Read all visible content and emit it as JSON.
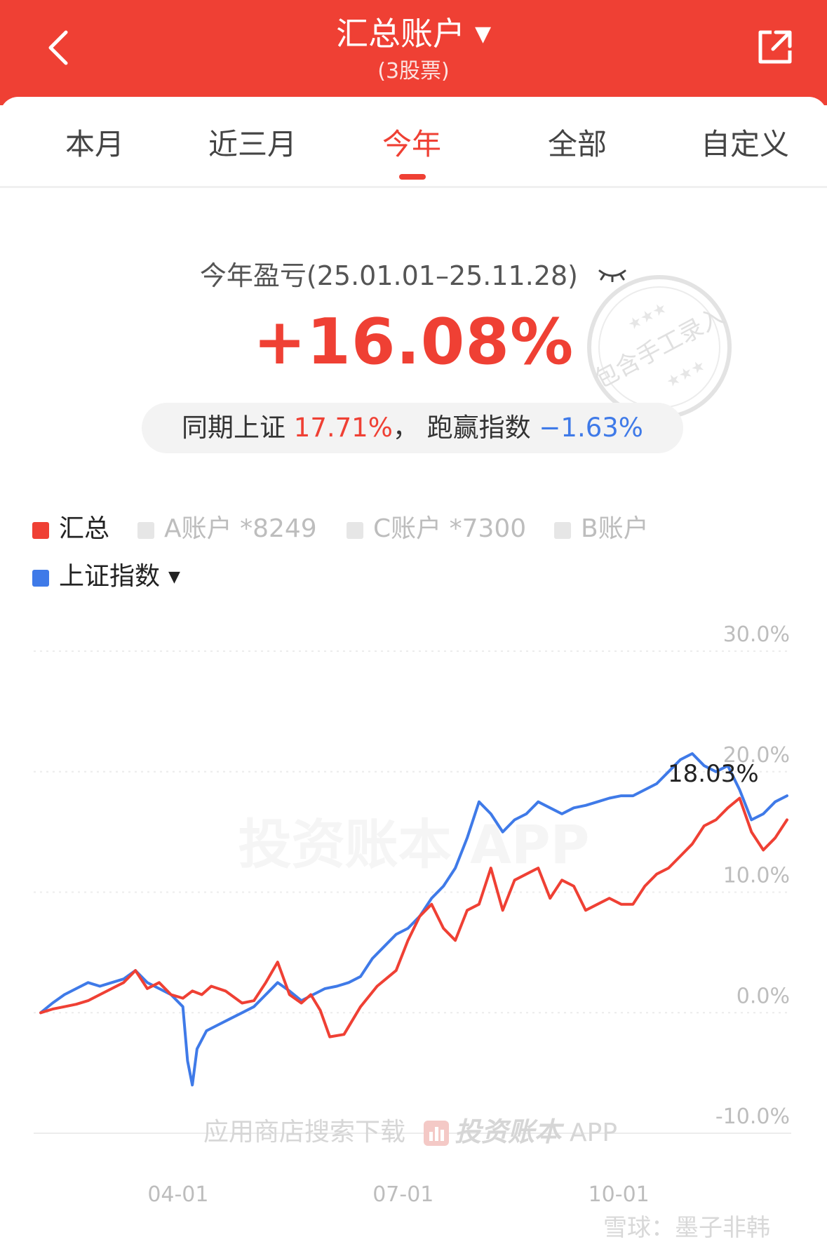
{
  "header": {
    "title": "汇总账户",
    "subtitle": "(3股票)",
    "back_icon": "chevron-left-icon",
    "share_icon": "share-icon",
    "bg_color": "#ef4034"
  },
  "tabs": [
    {
      "label": "本月",
      "active": false
    },
    {
      "label": "近三月",
      "active": false
    },
    {
      "label": "今年",
      "active": true
    },
    {
      "label": "全部",
      "active": false
    },
    {
      "label": "自定义",
      "active": false
    }
  ],
  "summary": {
    "label": "今年盈亏(25.01.01–25.11.28)",
    "return_pct": "+16.08%",
    "compare_prefix": "同期上证",
    "index_pct": "17.71%",
    "separator": "，",
    "beat_label": "跑赢指数",
    "beat_pct": "−1.63%"
  },
  "stamp_text": "包含手工录入",
  "legend": [
    {
      "label": "汇总",
      "color": "#ef4034",
      "active": true
    },
    {
      "label": "A账户  *8249",
      "color": "#e6e6e6",
      "active": false
    },
    {
      "label": "C账户  *7300",
      "color": "#e6e6e6",
      "active": false
    },
    {
      "label": "B账户",
      "color": "#e6e6e6",
      "active": false
    },
    {
      "label": "上证指数",
      "color": "#3f7ae8",
      "active": true
    }
  ],
  "watermarks": {
    "center": "投资账本 APP",
    "download": "应用商店搜索下载",
    "app_name": "投资账本",
    "app_suffix": "APP",
    "footer": "雪球：墨子非韩"
  },
  "chart_data": {
    "type": "line",
    "y_ticks": [
      "30.0%",
      "20.0%",
      "10.0%",
      "0.0%",
      "-10.0%"
    ],
    "ylim": [
      -10,
      30
    ],
    "x_ticks": [
      "04-01",
      "07-01",
      "10-01"
    ],
    "x_tick_pos": [
      58,
      153,
      244
    ],
    "grid": true,
    "marker_label": "18.03%",
    "series": [
      {
        "name": "汇总",
        "color": "#ef4034",
        "x": [
          0,
          5,
          10,
          15,
          20,
          25,
          30,
          35,
          40,
          45,
          50,
          55,
          60,
          64,
          68,
          72,
          78,
          85,
          90,
          95,
          100,
          105,
          110,
          114,
          118,
          122,
          128,
          135,
          142,
          150,
          155,
          160,
          165,
          170,
          175,
          180,
          185,
          190,
          195,
          200,
          205,
          210,
          215,
          220,
          225,
          230,
          235,
          240,
          245,
          250,
          255,
          260,
          265,
          270,
          275,
          280,
          285,
          290,
          295,
          300,
          305,
          310,
          315
        ],
        "values": [
          0,
          0.3,
          0.5,
          0.7,
          1.0,
          1.5,
          2.0,
          2.5,
          3.5,
          2.0,
          2.5,
          1.5,
          1.2,
          1.8,
          1.5,
          2.2,
          1.8,
          0.8,
          1.0,
          2.5,
          4.2,
          1.5,
          0.8,
          1.5,
          0.2,
          -2.0,
          -1.8,
          0.5,
          2.2,
          3.5,
          6.0,
          8.0,
          9.0,
          7.0,
          6.0,
          8.5,
          9.0,
          12.0,
          8.5,
          11.0,
          11.5,
          12.0,
          9.5,
          11.0,
          10.5,
          8.5,
          9.0,
          9.5,
          9.0,
          9.0,
          10.5,
          11.5,
          12.0,
          13.0,
          14.0,
          15.5,
          16.0,
          17.0,
          17.8,
          15.0,
          13.5,
          14.5,
          16.0
        ]
      },
      {
        "name": "上证指数",
        "color": "#3f7ae8",
        "x": [
          0,
          5,
          10,
          15,
          20,
          25,
          30,
          35,
          40,
          45,
          50,
          55,
          60,
          62,
          64,
          66,
          70,
          75,
          80,
          85,
          90,
          95,
          100,
          105,
          110,
          115,
          120,
          125,
          130,
          135,
          140,
          145,
          150,
          155,
          160,
          165,
          170,
          175,
          180,
          185,
          190,
          195,
          200,
          205,
          210,
          215,
          220,
          225,
          230,
          235,
          240,
          245,
          250,
          255,
          260,
          265,
          270,
          275,
          280,
          285,
          290,
          295,
          300,
          305,
          310,
          315
        ],
        "values": [
          0,
          0.8,
          1.5,
          2.0,
          2.5,
          2.2,
          2.5,
          2.8,
          3.5,
          2.5,
          2.0,
          1.5,
          0.5,
          -4.0,
          -6.0,
          -3.0,
          -1.5,
          -1.0,
          -0.5,
          0,
          0.5,
          1.5,
          2.5,
          1.8,
          1.0,
          1.5,
          2.0,
          2.2,
          2.5,
          3.0,
          4.5,
          5.5,
          6.5,
          7.0,
          8.0,
          9.5,
          10.5,
          12.0,
          14.5,
          17.5,
          16.5,
          15.0,
          16.0,
          16.5,
          17.5,
          17.0,
          16.5,
          17.0,
          17.2,
          17.5,
          17.8,
          18.0,
          18.0,
          18.5,
          19.0,
          20.0,
          21.0,
          21.5,
          20.5,
          20.0,
          20.5,
          18.5,
          16.0,
          16.5,
          17.5,
          18.0
        ]
      }
    ]
  }
}
